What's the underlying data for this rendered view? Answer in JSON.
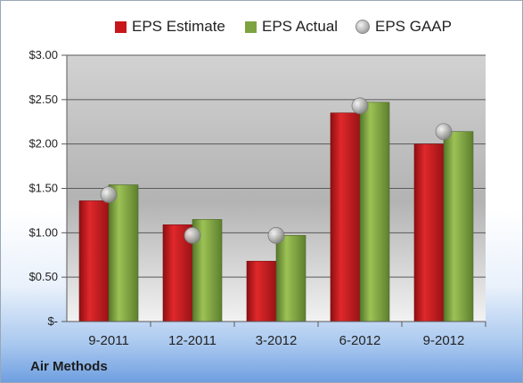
{
  "company": "Air Methods",
  "legend": [
    {
      "label": "EPS Estimate",
      "color": "#c8171b",
      "shape": "square"
    },
    {
      "label": "EPS Actual",
      "color": "#7da341",
      "shape": "square"
    },
    {
      "label": "EPS GAAP",
      "color": "#b0b0b0",
      "shape": "circle"
    }
  ],
  "colors": {
    "estimate": "#c8171b",
    "actual": "#7da341",
    "gaap": "#b0b0b0"
  },
  "chart_data": {
    "type": "bar",
    "categories": [
      "9-2011",
      "12-2011",
      "3-2012",
      "6-2012",
      "9-2012"
    ],
    "series": [
      {
        "name": "EPS Estimate",
        "type": "bar",
        "values": [
          1.36,
          1.09,
          0.68,
          2.35,
          2.0
        ]
      },
      {
        "name": "EPS Actual",
        "type": "bar",
        "values": [
          1.54,
          1.15,
          0.97,
          2.47,
          2.14
        ]
      },
      {
        "name": "EPS GAAP",
        "type": "scatter",
        "values": [
          1.43,
          0.97,
          0.97,
          2.43,
          2.14
        ]
      }
    ],
    "ylim": [
      0,
      3.0
    ],
    "yticks": [
      0,
      0.5,
      1.0,
      1.5,
      2.0,
      2.5,
      3.0
    ],
    "ytick_labels": [
      "$-",
      "$0.50",
      "$1.00",
      "$1.50",
      "$2.00",
      "$2.50",
      "$3.00"
    ],
    "grid": true,
    "legend_position": "top"
  }
}
